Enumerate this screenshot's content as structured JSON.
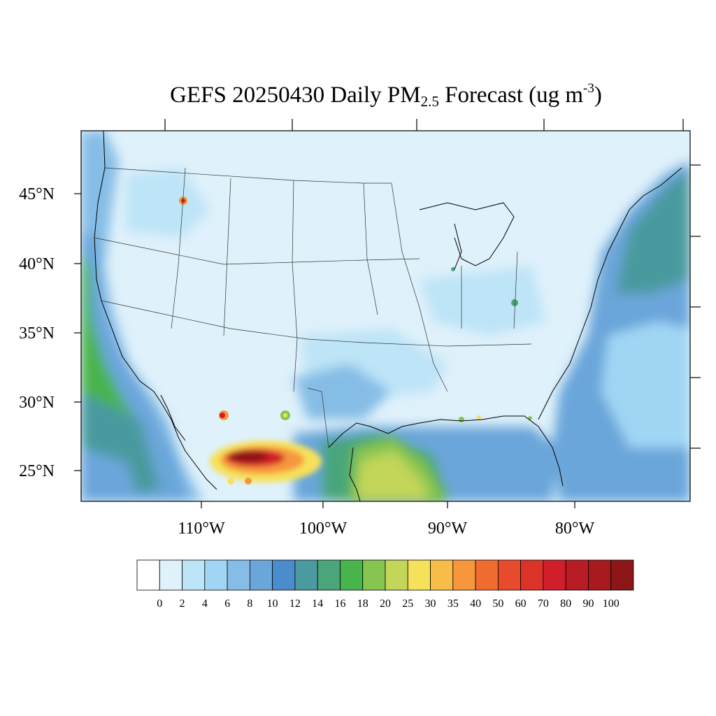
{
  "title": {
    "main": "GEFS 20250430 Daily PM",
    "sub": "2.5",
    "post": " Forecast (ug m",
    "sup": "-3",
    "close": ")"
  },
  "map": {
    "lat_labels": [
      "45°N",
      "40°N",
      "35°N",
      "30°N",
      "25°N"
    ],
    "lon_labels": [
      "110°W",
      "100°W",
      "90°W",
      "80°W"
    ],
    "base_color": "#dff1fb",
    "ocean_color": "#7fb8e0"
  },
  "colorbar": {
    "colors": [
      "#ffffff",
      "#dff1fb",
      "#bde4f7",
      "#a0d6f4",
      "#86bde6",
      "#6ba6da",
      "#4a8ccc",
      "#4a9a9f",
      "#4aa57a",
      "#48b44c",
      "#86c54f",
      "#c3d65a",
      "#f6e15a",
      "#f8bc48",
      "#f6973c",
      "#f06c30",
      "#e84b2c",
      "#dc3328",
      "#d01f2a",
      "#b81c24",
      "#a81a20",
      "#8c1618"
    ],
    "tick_labels": [
      "0",
      "2",
      "4",
      "6",
      "8",
      "10",
      "12",
      "14",
      "16",
      "18",
      "20",
      "25",
      "30",
      "35",
      "40",
      "50",
      "60",
      "70",
      "80",
      "90",
      "100"
    ]
  }
}
